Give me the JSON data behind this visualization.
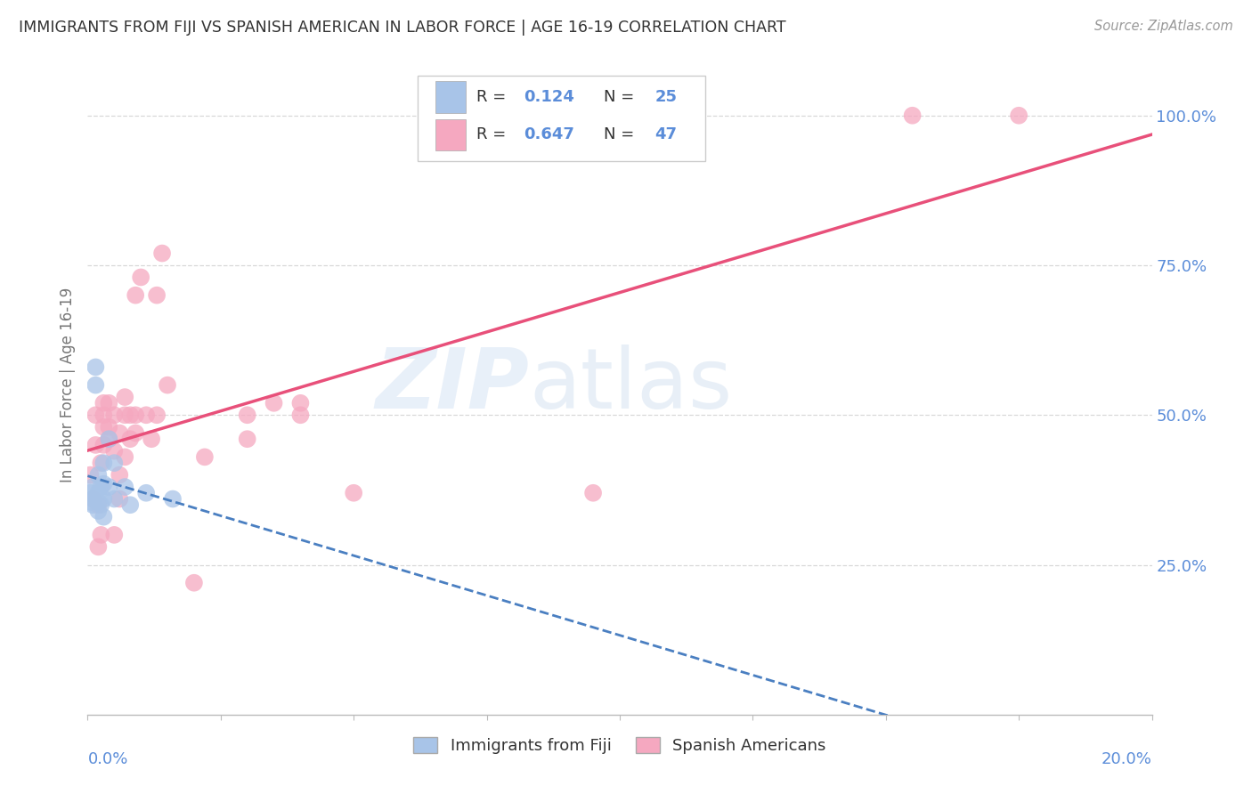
{
  "title": "IMMIGRANTS FROM FIJI VS SPANISH AMERICAN IN LABOR FORCE | AGE 16-19 CORRELATION CHART",
  "source": "Source: ZipAtlas.com",
  "ylabel": "In Labor Force | Age 16-19",
  "r1": 0.124,
  "n1": 25,
  "r2": 0.647,
  "n2": 47,
  "color_fiji": "#a8c4e8",
  "color_spanish": "#f5a8c0",
  "line_fiji_color": "#4a7fc1",
  "line_spanish_color": "#e8507a",
  "legend_label1": "Immigrants from Fiji",
  "legend_label2": "Spanish Americans",
  "text_color": "#5b8dd9",
  "title_color": "#333333",
  "grid_color": "#d8d8d8",
  "background_color": "#ffffff",
  "xmin": 0.0,
  "xmax": 0.2,
  "ymin": 0.0,
  "ymax": 1.1,
  "fiji_x": [
    0.0005,
    0.0005,
    0.001,
    0.001,
    0.001,
    0.0015,
    0.0015,
    0.002,
    0.002,
    0.002,
    0.002,
    0.0025,
    0.0025,
    0.003,
    0.003,
    0.003,
    0.003,
    0.004,
    0.004,
    0.005,
    0.005,
    0.007,
    0.008,
    0.011,
    0.016
  ],
  "fiji_y": [
    0.355,
    0.37,
    0.35,
    0.36,
    0.38,
    0.55,
    0.58,
    0.34,
    0.355,
    0.37,
    0.4,
    0.35,
    0.38,
    0.33,
    0.36,
    0.385,
    0.42,
    0.38,
    0.46,
    0.36,
    0.42,
    0.38,
    0.35,
    0.37,
    0.36
  ],
  "spanish_x": [
    0.0005,
    0.001,
    0.0015,
    0.0015,
    0.002,
    0.002,
    0.0025,
    0.0025,
    0.003,
    0.003,
    0.003,
    0.003,
    0.004,
    0.004,
    0.004,
    0.005,
    0.005,
    0.005,
    0.006,
    0.006,
    0.006,
    0.007,
    0.007,
    0.007,
    0.008,
    0.008,
    0.009,
    0.009,
    0.009,
    0.01,
    0.011,
    0.012,
    0.013,
    0.013,
    0.014,
    0.015,
    0.02,
    0.022,
    0.03,
    0.03,
    0.035,
    0.04,
    0.04,
    0.05,
    0.095,
    0.155,
    0.175
  ],
  "spanish_y": [
    0.4,
    0.36,
    0.45,
    0.5,
    0.28,
    0.35,
    0.3,
    0.42,
    0.45,
    0.48,
    0.5,
    0.52,
    0.46,
    0.48,
    0.52,
    0.3,
    0.44,
    0.5,
    0.36,
    0.4,
    0.47,
    0.43,
    0.5,
    0.53,
    0.46,
    0.5,
    0.47,
    0.5,
    0.7,
    0.73,
    0.5,
    0.46,
    0.5,
    0.7,
    0.77,
    0.55,
    0.22,
    0.43,
    0.46,
    0.5,
    0.52,
    0.5,
    0.52,
    0.37,
    0.37,
    1.0,
    1.0
  ],
  "watermark_zip": "ZIP",
  "watermark_atlas": "atlas"
}
